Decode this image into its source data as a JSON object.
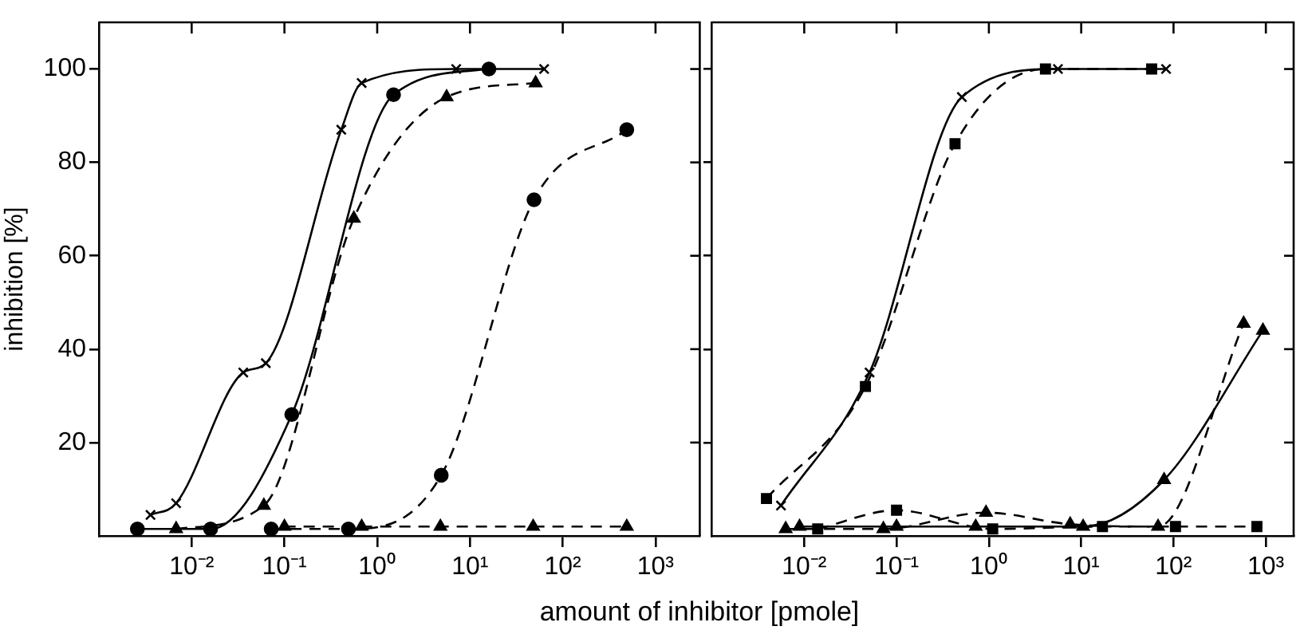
{
  "chart_data": [
    {
      "type": "line",
      "ylabel": "inhibition [%]",
      "xlabel": "amount of inhibitor [pmole]",
      "log": "x",
      "grid": false,
      "legend": false,
      "xlim": [
        0.001,
        3000
      ],
      "xticks": [
        {
          "value": 0.01,
          "label": "10⁻²"
        },
        {
          "value": 0.1,
          "label": "10⁻¹"
        },
        {
          "value": 1,
          "label": "10⁰"
        },
        {
          "value": 10,
          "label": "10¹"
        },
        {
          "value": 100,
          "label": "10²"
        },
        {
          "value": 1000,
          "label": "10³"
        }
      ],
      "ylim": [
        0,
        110
      ],
      "yticks": [
        20,
        40,
        60,
        80,
        100
      ],
      "series": [
        {
          "color": "#000000",
          "marker": "cross",
          "line_style": "solid",
          "x": [
            0.0036,
            0.0068,
            0.036,
            0.063,
            0.41,
            0.68,
            7.1,
            63
          ],
          "values": [
            4.5,
            7,
            35,
            37,
            87,
            97,
            100,
            100
          ]
        },
        {
          "color": "#000000",
          "marker": "circle",
          "line_style": "solid",
          "x": [
            0.0026,
            0.016,
            0.12,
            1.5,
            16
          ],
          "values": [
            1.5,
            1.5,
            26,
            94.5,
            100
          ]
        },
        {
          "color": "#000000",
          "marker": "triangle",
          "line_style": "dashed",
          "x": [
            0.0068,
            0.06,
            0.56,
            5.6,
            51
          ],
          "values": [
            1.5,
            6.5,
            68,
            94,
            97
          ]
        },
        {
          "color": "#000000",
          "marker": "circle",
          "line_style": "dashed",
          "x": [
            0.072,
            0.49,
            4.9,
            49,
            490
          ],
          "values": [
            1.5,
            1.5,
            13,
            72,
            87
          ]
        },
        {
          "color": "#000000",
          "marker": "triangle",
          "line_style": "dashed",
          "x": [
            0.1,
            0.68,
            4.8,
            48,
            490
          ],
          "values": [
            2,
            2,
            2,
            2,
            2
          ]
        }
      ]
    },
    {
      "type": "line",
      "log": "x",
      "grid": false,
      "legend": false,
      "tick_labels": "x",
      "xlim": [
        0.001,
        2000
      ],
      "xticks": [
        {
          "value": 0.01,
          "label": "10⁻²"
        },
        {
          "value": 0.1,
          "label": "10⁻¹"
        },
        {
          "value": 1,
          "label": "10⁰"
        },
        {
          "value": 10,
          "label": "10¹"
        },
        {
          "value": 100,
          "label": "10²"
        },
        {
          "value": 1000,
          "label": "10³"
        }
      ],
      "ylim": [
        0,
        110
      ],
      "yticks": [
        20,
        40,
        60,
        80,
        100
      ],
      "series": [
        {
          "color": "#000000",
          "marker": "cross",
          "line_style": "solid",
          "x": [
            0.0056,
            0.051,
            0.51,
            5.6,
            83
          ],
          "values": [
            6.5,
            35,
            94,
            100,
            100
          ]
        },
        {
          "color": "#000000",
          "marker": "square",
          "line_style": "dashed",
          "x": [
            0.0039,
            0.046,
            0.43,
            4.1,
            58
          ],
          "values": [
            8,
            32,
            84,
            100,
            100
          ]
        },
        {
          "color": "#000000",
          "marker": "triangle",
          "line_style": "dashed",
          "x": [
            0.0063,
            0.072,
            0.93,
            7.6,
            68,
            575
          ],
          "values": [
            1.5,
            1.5,
            5,
            2.5,
            2,
            45.5
          ]
        },
        {
          "color": "#000000",
          "marker": "triangle",
          "line_style": "solid",
          "x": [
            0.0089,
            0.1,
            0.72,
            10.5,
            79,
            930
          ],
          "values": [
            2,
            2,
            2,
            2,
            12,
            44
          ]
        },
        {
          "color": "#000000",
          "marker": "square",
          "line_style": "dashed",
          "x": [
            0.014,
            0.1,
            1.1,
            17,
            105,
            800
          ],
          "values": [
            1.5,
            5.5,
            1.5,
            2,
            2,
            2
          ]
        }
      ]
    }
  ]
}
